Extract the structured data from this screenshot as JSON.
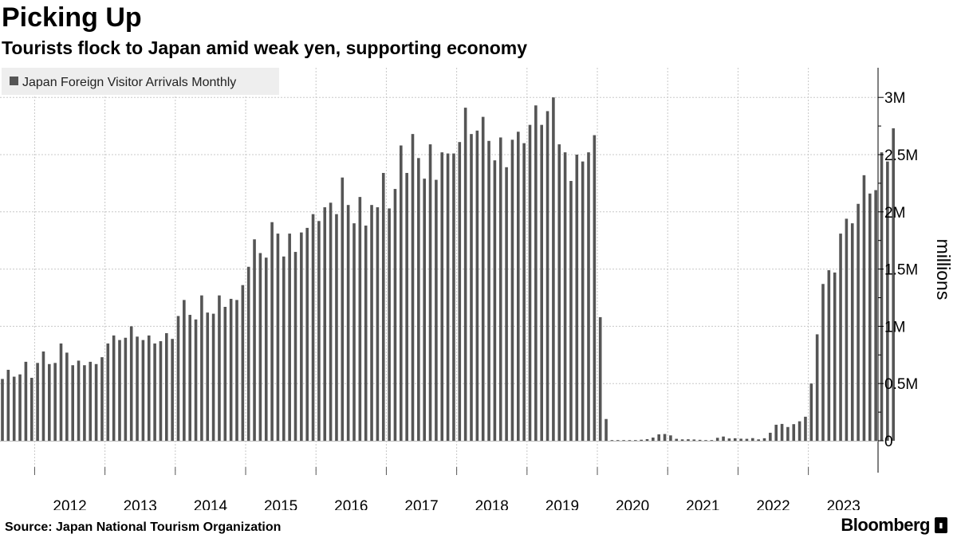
{
  "header": {
    "title": "Picking Up",
    "subtitle": "Tourists flock to Japan amid weak yen, supporting economy"
  },
  "footer": {
    "source": "Source: Japan National Tourism Organization",
    "brand": "Bloomberg",
    "brand_badge": "▮"
  },
  "colors": {
    "bar": "#555555",
    "grid": "#c8c8c8",
    "legend_bg": "#eeeeee",
    "text": "#000000"
  },
  "chart_data": {
    "type": "bar",
    "title": "Picking Up",
    "subtitle": "Tourists flock to Japan amid weak yen, supporting economy",
    "xlabel": "",
    "ylabel": "millions",
    "ylim": [
      0,
      3200000
    ],
    "legend": [
      "Japan Foreign Visitor Arrivals Monthly"
    ],
    "legend_position": "top-left",
    "grid": true,
    "x_tick_labels": [
      "2012",
      "2013",
      "2014",
      "2015",
      "2016",
      "2017",
      "2018",
      "2019",
      "2020",
      "2021",
      "2022",
      "2023"
    ],
    "y_ticks": [
      0,
      500000,
      1000000,
      1500000,
      2000000,
      2500000,
      3000000
    ],
    "y_tick_labels": [
      "0",
      "0.5M",
      "1M",
      "1.5M",
      "2M",
      "2.5M",
      "3M"
    ],
    "start": "2011-07",
    "series": [
      {
        "name": "Japan Foreign Visitor Arrivals Monthly",
        "values": [
          540000,
          620000,
          560000,
          580000,
          690000,
          550000,
          680000,
          780000,
          670000,
          680000,
          850000,
          770000,
          660000,
          700000,
          660000,
          690000,
          670000,
          730000,
          850000,
          920000,
          880000,
          900000,
          1000000,
          910000,
          880000,
          920000,
          850000,
          870000,
          940000,
          890000,
          1090000,
          1230000,
          1100000,
          1060000,
          1270000,
          1120000,
          1110000,
          1270000,
          1170000,
          1240000,
          1230000,
          1360000,
          1520000,
          1760000,
          1640000,
          1600000,
          1910000,
          1810000,
          1610000,
          1810000,
          1650000,
          1820000,
          1860000,
          1980000,
          1920000,
          2040000,
          2080000,
          1980000,
          2300000,
          2060000,
          1900000,
          2130000,
          1880000,
          2060000,
          2040000,
          2340000,
          2030000,
          2200000,
          2580000,
          2340000,
          2680000,
          2470000,
          2290000,
          2590000,
          2280000,
          2520000,
          2510000,
          2510000,
          2610000,
          2910000,
          2680000,
          2710000,
          2830000,
          2620000,
          2450000,
          2650000,
          2390000,
          2630000,
          2700000,
          2600000,
          2760000,
          2930000,
          2760000,
          2880000,
          3000000,
          2590000,
          2520000,
          2270000,
          2500000,
          2440000,
          2520000,
          2670000,
          1080000,
          190000,
          2000,
          3000,
          2000,
          2000,
          4000,
          9000,
          14000,
          28000,
          56000,
          59000,
          47000,
          17000,
          12000,
          13000,
          11000,
          8000,
          4000,
          5000,
          26000,
          37000,
          20000,
          22000,
          18000,
          17000,
          23000,
          12000,
          22000,
          70000,
          140000,
          147000,
          120000,
          145000,
          170000,
          210000,
          500000,
          930000,
          1370000,
          1490000,
          1470000,
          1810000,
          1940000,
          1900000,
          2070000,
          2320000,
          2160000,
          2190000,
          2520000,
          2440000,
          2730000
        ]
      }
    ]
  }
}
